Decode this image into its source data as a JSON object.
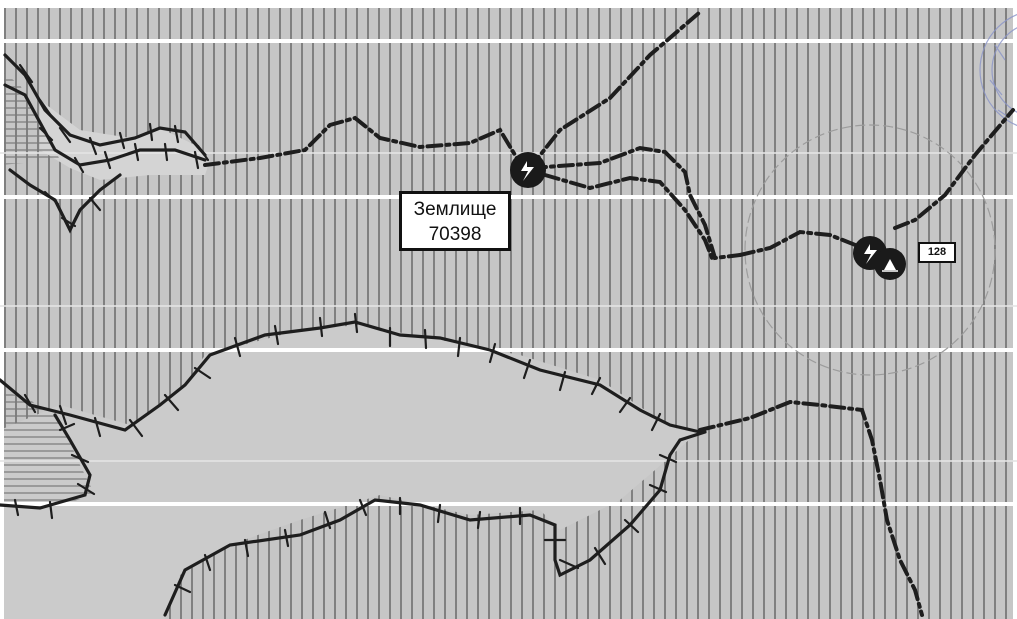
{
  "parcel_label": {
    "name": "Землище",
    "number": "70398"
  },
  "marker_number": "128",
  "icons": {
    "transformer_marker_1": "lightning-bolt-circle-icon",
    "transformer_marker_2": "lightning-bolt-circle-icon",
    "pole_marker": "tower-circle-icon"
  },
  "colors": {
    "background_gray": "#c6c6c6",
    "light_gray": "#dcdcdc",
    "hatch_line": "#6e6e6e",
    "band_white": "#ffffff",
    "boundary_dark": "#1e1e1e",
    "stamp_blue": "#8a94c8"
  }
}
